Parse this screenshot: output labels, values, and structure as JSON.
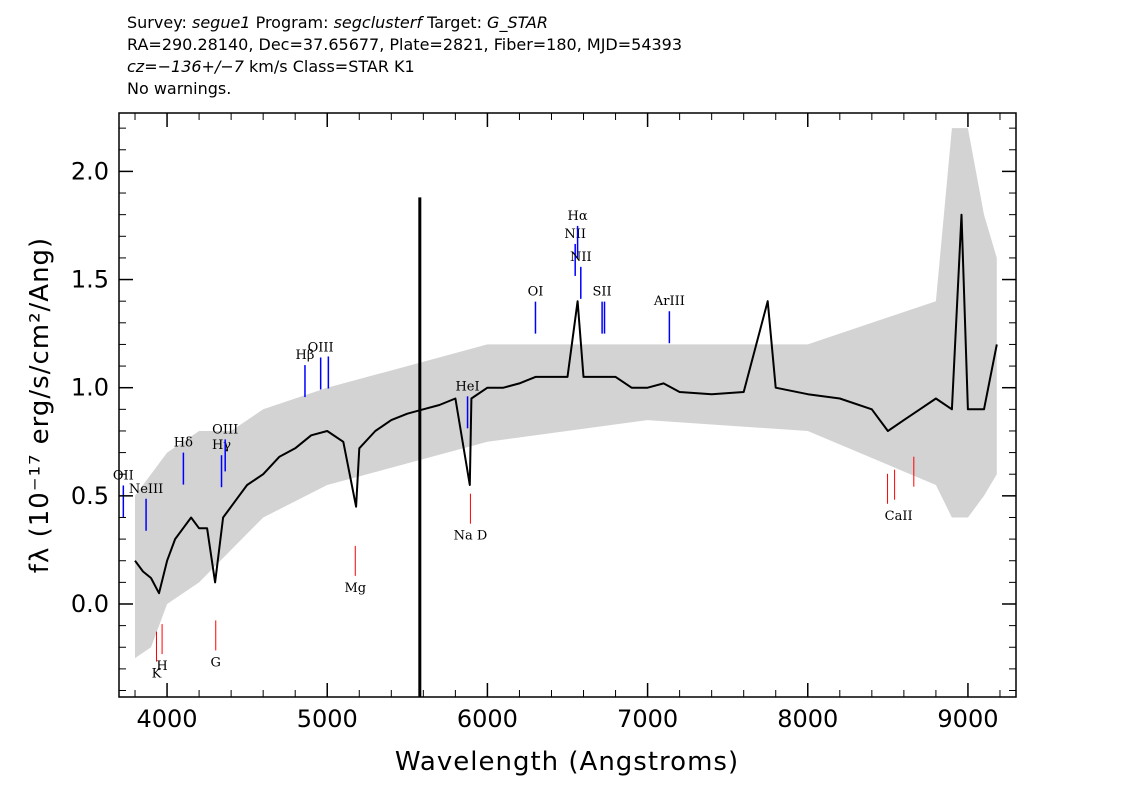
{
  "header": {
    "line1": {
      "survey_label": "Survey:",
      "survey": "segue1",
      "program_label": "Program:",
      "program": "segclusterf",
      "target_label": "Target:",
      "target": "G_STAR"
    },
    "line2": "RA=290.28140, Dec=37.65677, Plate=2821, Fiber=180, MJD=54393",
    "line3": {
      "cz": "cz=−136+/−7",
      "rest": "km/s Class=STAR K1"
    },
    "line4": "No warnings."
  },
  "colors": {
    "flux": "#000000",
    "error": "#c0c0c0",
    "emission_line": "#0000ff",
    "absorption_line": "#ff0000"
  },
  "chart_data": {
    "type": "line",
    "xlabel": "Wavelength (Angstroms)",
    "ylabel": "fλ (10⁻¹⁷ erg/s/cm²/Ang)",
    "xlim": [
      3700,
      9300
    ],
    "ylim": [
      -0.43,
      2.27
    ],
    "x_ticks": [
      4000,
      5000,
      6000,
      7000,
      8000,
      9000
    ],
    "y_ticks": [
      0.0,
      0.5,
      1.0,
      1.5,
      2.0
    ],
    "x_tick_labels": [
      "4000",
      "5000",
      "6000",
      "7000",
      "8000",
      "9000"
    ],
    "y_tick_labels": [
      "0.0",
      "0.5",
      "1.0",
      "1.5",
      "2.0"
    ],
    "series": [
      {
        "role": "flux",
        "color": "#000000",
        "x": [
          3800,
          3850,
          3900,
          3950,
          4000,
          4050,
          4100,
          4150,
          4200,
          4250,
          4300,
          4350,
          4400,
          4450,
          4500,
          4600,
          4700,
          4800,
          4900,
          5000,
          5100,
          5180,
          5200,
          5300,
          5400,
          5500,
          5600,
          5700,
          5800,
          5890,
          5900,
          6000,
          6100,
          6200,
          6300,
          6400,
          6500,
          6563,
          6600,
          6700,
          6800,
          6900,
          7000,
          7100,
          7200,
          7400,
          7600,
          7750,
          7800,
          8000,
          8200,
          8400,
          8500,
          8600,
          8700,
          8800,
          8900,
          8960,
          9000,
          9100,
          9180
        ],
        "y": [
          0.2,
          0.15,
          0.12,
          0.05,
          0.2,
          0.3,
          0.35,
          0.4,
          0.35,
          0.35,
          0.1,
          0.4,
          0.45,
          0.5,
          0.55,
          0.6,
          0.68,
          0.72,
          0.78,
          0.8,
          0.75,
          0.45,
          0.72,
          0.8,
          0.85,
          0.88,
          0.9,
          0.92,
          0.95,
          0.55,
          0.95,
          1.0,
          1.0,
          1.02,
          1.05,
          1.05,
          1.05,
          1.4,
          1.05,
          1.05,
          1.05,
          1.0,
          1.0,
          1.02,
          0.98,
          0.97,
          0.98,
          1.4,
          1.0,
          0.97,
          0.95,
          0.9,
          0.8,
          0.85,
          0.9,
          0.95,
          0.9,
          1.8,
          0.9,
          0.9,
          1.2
        ]
      },
      {
        "role": "error",
        "color": "#c0c0c0",
        "x": [
          3800,
          3900,
          4000,
          4200,
          4400,
          4600,
          5000,
          5500,
          6000,
          7000,
          8000,
          8800,
          8900,
          9000,
          9100,
          9180
        ],
        "y_low": [
          -0.25,
          -0.2,
          0.0,
          0.1,
          0.25,
          0.4,
          0.55,
          0.65,
          0.75,
          0.85,
          0.8,
          0.55,
          0.4,
          0.4,
          0.5,
          0.6
        ],
        "y_high": [
          0.5,
          0.6,
          0.7,
          0.8,
          0.8,
          0.9,
          1.0,
          1.1,
          1.2,
          1.2,
          1.2,
          1.4,
          2.2,
          2.2,
          1.8,
          1.6
        ]
      }
    ],
    "spike": {
      "x": 5578,
      "y_top": 1.88,
      "y_bottom": -0.43
    },
    "emission_lines": [
      {
        "label": "OII",
        "wavelength": 3727
      },
      {
        "label": "NeIII",
        "wavelength": 3869
      },
      {
        "label": "Hδ",
        "wavelength": 4102
      },
      {
        "label": "Hγ",
        "wavelength": 4340
      },
      {
        "label": "OIII",
        "wavelength": 4363
      },
      {
        "label": "Hβ",
        "wavelength": 4861
      },
      {
        "label": "OIII",
        "wavelength": 4959
      },
      {
        "label": "OIII",
        "wavelength": 5007
      },
      {
        "label": "HeI",
        "wavelength": 5876
      },
      {
        "label": "OI",
        "wavelength": 6300
      },
      {
        "label": "NII",
        "wavelength": 6548
      },
      {
        "label": "Hα",
        "wavelength": 6563
      },
      {
        "label": "NII",
        "wavelength": 6583
      },
      {
        "label": "SII",
        "wavelength": 6716
      },
      {
        "label": "SII",
        "wavelength": 6731
      },
      {
        "label": "ArIII",
        "wavelength": 7136
      }
    ],
    "absorption_lines": [
      {
        "label": "K",
        "wavelength": 3934
      },
      {
        "label": "H",
        "wavelength": 3969
      },
      {
        "label": "G",
        "wavelength": 4304
      },
      {
        "label": "Mg",
        "wavelength": 5175
      },
      {
        "label": "Na D",
        "wavelength": 5894
      },
      {
        "label": "CaII",
        "wavelength": 8498
      },
      {
        "label": "CaII",
        "wavelength": 8542
      },
      {
        "label": "CaII",
        "wavelength": 8662
      }
    ]
  }
}
